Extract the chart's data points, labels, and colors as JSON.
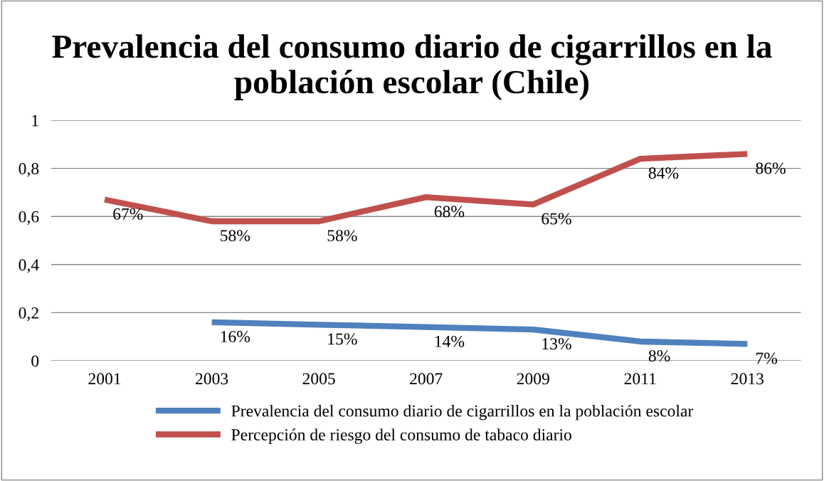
{
  "chart_data": {
    "type": "line",
    "title": "Prevalencia del consumo diario de cigarrillos en la población escolar (Chile)",
    "categories": [
      "2001",
      "2003",
      "2005",
      "2007",
      "2009",
      "2011",
      "2013"
    ],
    "series": [
      {
        "name": "Prevalencia del consumo diario de cigarrillos en la población escolar",
        "color": "#4f81bd",
        "values": [
          null,
          0.16,
          0.15,
          0.14,
          0.13,
          0.08,
          0.07
        ],
        "value_labels": [
          null,
          "16%",
          "15%",
          "14%",
          "13%",
          "8%",
          "7%"
        ]
      },
      {
        "name": "Percepción de riesgo del consumo de tabaco diario",
        "color": "#c0504d",
        "values": [
          0.67,
          0.58,
          0.58,
          0.68,
          0.65,
          0.84,
          0.86
        ],
        "value_labels": [
          "67%",
          "58%",
          "58%",
          "68%",
          "65%",
          "84%",
          "86%"
        ]
      }
    ],
    "ylim": [
      0,
      1
    ],
    "yticks": [
      {
        "value": 0,
        "label": "0"
      },
      {
        "value": 0.2,
        "label": "0,2"
      },
      {
        "value": 0.4,
        "label": "0,4"
      },
      {
        "value": 0.6,
        "label": "0,6"
      },
      {
        "value": 0.8,
        "label": "0,8"
      },
      {
        "value": 1,
        "label": "1"
      }
    ],
    "grid": "y",
    "legend": "bottom",
    "line_style": "solid",
    "marker": "none"
  }
}
